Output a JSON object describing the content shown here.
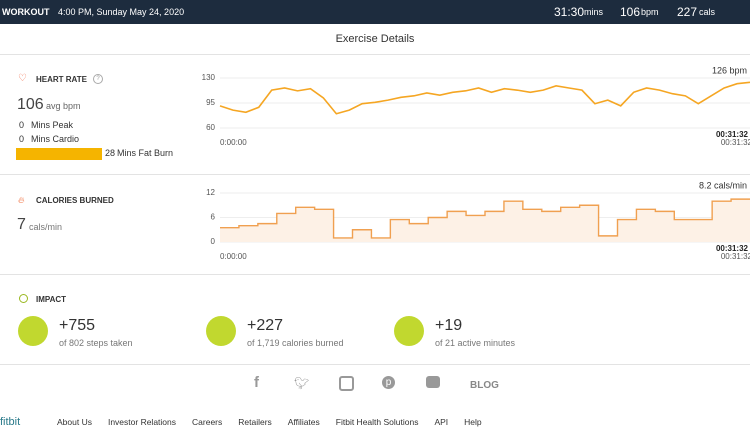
{
  "header": {
    "title": "WORKOUT",
    "datetime": "4:00 PM, Sunday May 24, 2020",
    "duration": "31:30",
    "duration_unit": "mins",
    "heart_rate": "106",
    "heart_rate_unit": "bpm",
    "calories": "227",
    "calories_unit": "cals"
  },
  "section_title": "Exercise Details",
  "heart_rate": {
    "title": "HEART RATE",
    "help": "?",
    "average": "106",
    "average_unit": "avg bpm",
    "zones": [
      {
        "minutes": 0,
        "label": "Mins Peak"
      },
      {
        "minutes": 0,
        "label": "Mins Cardio"
      },
      {
        "minutes": 28,
        "label": "Mins Fat Burn",
        "color": "#f5b400"
      }
    ],
    "chart_data": {
      "type": "line",
      "color": "#f5a623",
      "annotation": "126 bpm",
      "x_start": "0:00:00",
      "x_end": "00:31:32",
      "values": [
        91,
        85,
        82,
        89,
        113,
        116,
        112,
        115,
        102,
        80,
        85,
        94,
        96,
        99,
        103,
        105,
        109,
        106,
        110,
        112,
        116,
        110,
        115,
        113,
        110,
        113,
        119,
        116,
        113,
        94,
        99,
        91,
        110,
        116,
        113,
        108,
        105,
        94,
        105,
        116,
        122,
        124
      ],
      "ylim": [
        60,
        130
      ],
      "yticks": [
        60,
        95,
        130
      ],
      "grid": true
    }
  },
  "calories": {
    "title": "CALORIES BURNED",
    "average": "7",
    "average_unit": "cals/min",
    "chart_data": {
      "type": "step",
      "color": "#f0a050",
      "fill": "#fdf1e6",
      "annotation": "8.2 cals/min",
      "x_start": "0:00:00",
      "x_end": "00:31:32",
      "values": [
        3.5,
        4,
        4.5,
        7,
        8.5,
        8,
        1,
        3,
        1,
        5.5,
        4.5,
        6,
        7.5,
        6.5,
        7.5,
        10,
        8,
        7.5,
        8.5,
        9,
        1.5,
        5.5,
        8,
        7.5,
        5.5,
        5.5,
        10,
        10.5
      ],
      "ylim": [
        0,
        12
      ],
      "yticks": [
        0,
        6,
        12
      ],
      "grid": true
    }
  },
  "impact": {
    "title": "IMPACT",
    "items": [
      {
        "value": "+755",
        "detail": "of 802 steps taken"
      },
      {
        "value": "+227",
        "detail": "of 1,719 calories burned"
      },
      {
        "value": "+19",
        "detail": "of 21 active minutes"
      }
    ]
  },
  "social": {
    "blog": "BLOG"
  },
  "footer": {
    "logo": "fitbit",
    "links": [
      "About Us",
      "Investor Relations",
      "Careers",
      "Retailers",
      "Affiliates",
      "Fitbit Health Solutions",
      "API",
      "Help"
    ]
  }
}
